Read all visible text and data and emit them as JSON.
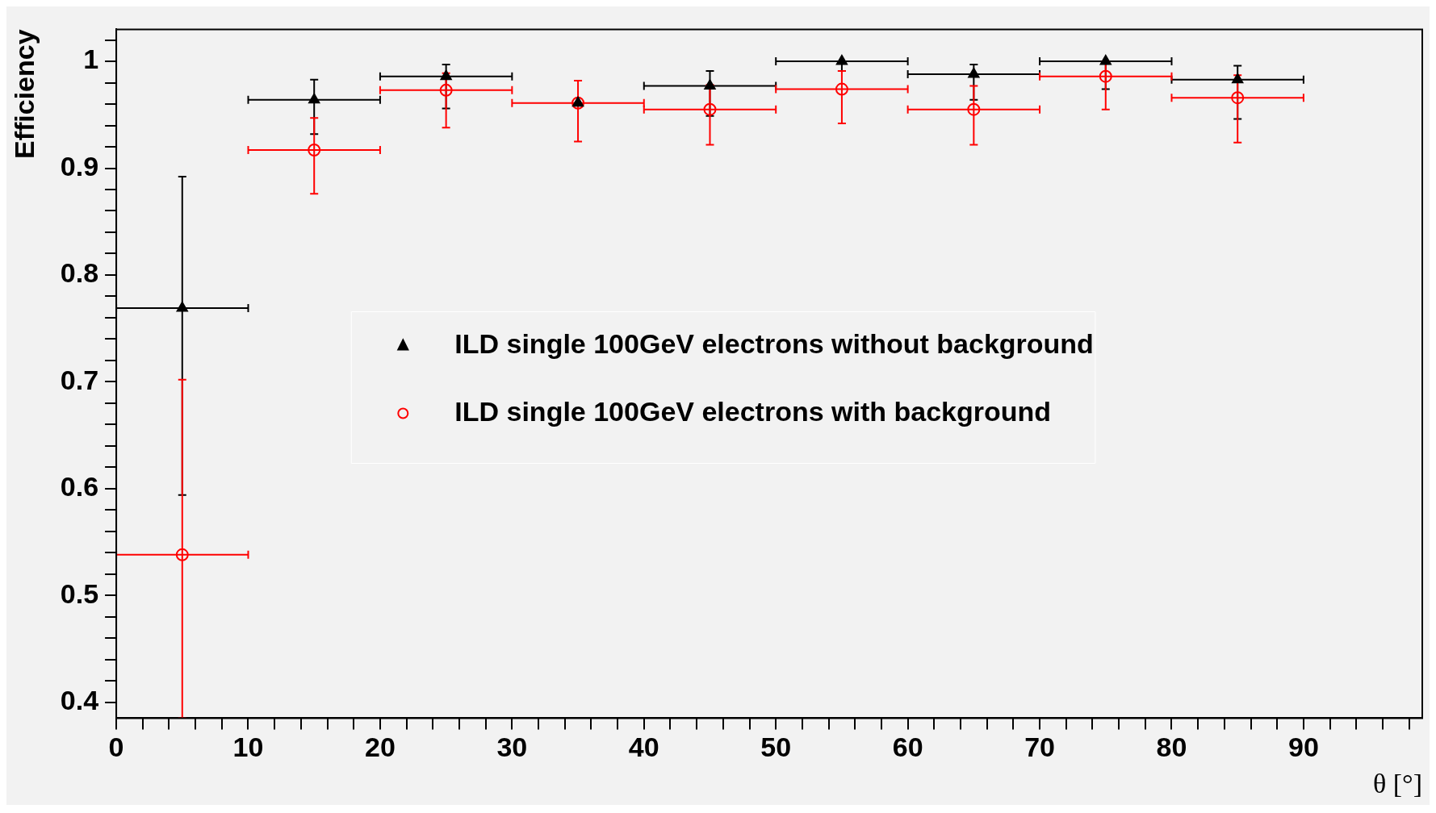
{
  "chart_data": {
    "type": "scatter",
    "xlabel": "θ [°]",
    "ylabel": "Efficiency",
    "xlim": [
      0,
      99
    ],
    "ylim": [
      0.385,
      1.03
    ],
    "xticks": [
      0,
      {
        "value": 2,
        "label": null
      },
      {
        "value": 4,
        "label": null
      },
      {
        "value": 6,
        "label": null
      },
      {
        "value": 8,
        "label": null
      },
      10,
      {
        "value": 12,
        "label": null
      },
      {
        "value": 14,
        "label": null
      },
      {
        "value": 16,
        "label": null
      },
      {
        "value": 18,
        "label": null
      },
      20,
      {
        "value": 22,
        "label": null
      },
      {
        "value": 24,
        "label": null
      },
      {
        "value": 26,
        "label": null
      },
      {
        "value": 28,
        "label": null
      },
      30,
      {
        "value": 32,
        "label": null
      },
      {
        "value": 34,
        "label": null
      },
      {
        "value": 36,
        "label": null
      },
      {
        "value": 38,
        "label": null
      },
      40,
      {
        "value": 42,
        "label": null
      },
      {
        "value": 44,
        "label": null
      },
      {
        "value": 46,
        "label": null
      },
      {
        "value": 48,
        "label": null
      },
      50,
      {
        "value": 52,
        "label": null
      },
      {
        "value": 54,
        "label": null
      },
      {
        "value": 56,
        "label": null
      },
      {
        "value": 58,
        "label": null
      },
      60,
      {
        "value": 62,
        "label": null
      },
      {
        "value": 64,
        "label": null
      },
      {
        "value": 66,
        "label": null
      },
      {
        "value": 68,
        "label": null
      },
      70,
      {
        "value": 72,
        "label": null
      },
      {
        "value": 74,
        "label": null
      },
      {
        "value": 76,
        "label": null
      },
      {
        "value": 78,
        "label": null
      },
      80,
      {
        "value": 82,
        "label": null
      },
      {
        "value": 84,
        "label": null
      },
      {
        "value": 86,
        "label": null
      },
      {
        "value": 88,
        "label": null
      },
      90,
      {
        "value": 92,
        "label": null
      },
      {
        "value": 94,
        "label": null
      },
      {
        "value": 96,
        "label": null
      },
      {
        "value": 98,
        "label": null
      }
    ],
    "yticks": [
      0.4,
      {
        "value": 0.42,
        "label": null
      },
      {
        "value": 0.44,
        "label": null
      },
      {
        "value": 0.46,
        "label": null
      },
      {
        "value": 0.48,
        "label": null
      },
      0.5,
      {
        "value": 0.52,
        "label": null
      },
      {
        "value": 0.54,
        "label": null
      },
      {
        "value": 0.56,
        "label": null
      },
      {
        "value": 0.58,
        "label": null
      },
      0.6,
      {
        "value": 0.62,
        "label": null
      },
      {
        "value": 0.64,
        "label": null
      },
      {
        "value": 0.66,
        "label": null
      },
      {
        "value": 0.68,
        "label": null
      },
      0.7,
      {
        "value": 0.72,
        "label": null
      },
      {
        "value": 0.74,
        "label": null
      },
      {
        "value": 0.76,
        "label": null
      },
      {
        "value": 0.78,
        "label": null
      },
      0.8,
      {
        "value": 0.82,
        "label": null
      },
      {
        "value": 0.84,
        "label": null
      },
      {
        "value": 0.86,
        "label": null
      },
      {
        "value": 0.88,
        "label": null
      },
      0.9,
      {
        "value": 0.92,
        "label": null
      },
      {
        "value": 0.94,
        "label": null
      },
      {
        "value": 0.96,
        "label": null
      },
      {
        "value": 0.98,
        "label": null
      },
      1,
      {
        "value": 1.02,
        "label": null
      }
    ],
    "grid": false,
    "legend": "center",
    "series": [
      {
        "name": "ILD single 100GeV electrons without background",
        "color": "#000000",
        "marker": "triangle",
        "x": [
          5,
          15,
          25,
          35,
          45,
          55,
          65,
          75,
          85
        ],
        "values": [
          0.769,
          0.964,
          0.986,
          0.961,
          0.977,
          1.0,
          0.988,
          1.0,
          0.983
        ],
        "errors": [
          [
            0.594,
            0.892
          ],
          [
            0.932,
            0.983
          ],
          [
            0.956,
            0.997
          ],
          null,
          [
            0.949,
            0.991
          ],
          [
            0.991,
            1.0
          ],
          [
            0.964,
            0.997
          ],
          [
            0.974,
            1.0
          ],
          [
            0.946,
            0.996
          ]
        ],
        "xerrors": [
          5,
          5,
          5,
          null,
          5,
          5,
          5,
          5,
          5
        ]
      },
      {
        "name": "ILD single 100GeV electrons with background",
        "color": "#ff0000",
        "marker": "circle",
        "x": [
          5,
          15,
          25,
          35,
          45,
          55,
          65,
          75,
          85
        ],
        "values": [
          0.538,
          0.917,
          0.973,
          0.961,
          0.955,
          0.974,
          0.955,
          0.986,
          0.966
        ],
        "errors": [
          [
            0.385,
            0.702
          ],
          [
            0.876,
            0.947
          ],
          [
            0.938,
            0.989
          ],
          [
            0.925,
            0.982
          ],
          [
            0.922,
            0.978
          ],
          [
            0.942,
            0.991
          ],
          [
            0.922,
            0.977
          ],
          [
            0.955,
            1.0
          ],
          [
            0.924,
            0.987
          ]
        ],
        "xerrors": [
          5,
          5,
          5,
          5,
          5,
          5,
          5,
          5,
          5
        ]
      }
    ]
  }
}
